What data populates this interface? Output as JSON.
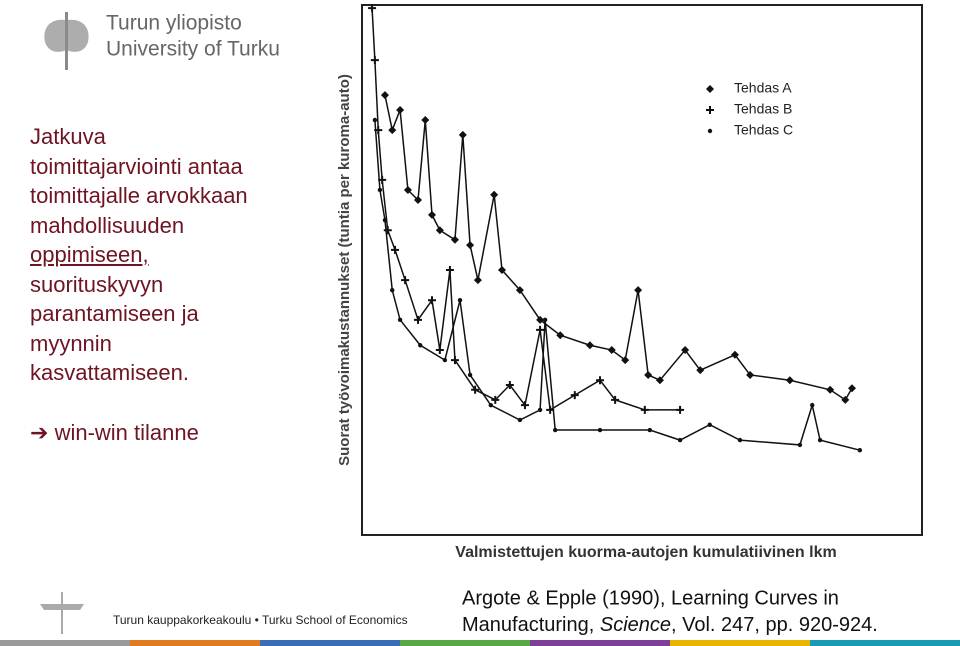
{
  "logo": {
    "line1": "Turun yliopisto",
    "line2": "University of Turku"
  },
  "body": {
    "lines": [
      "Jatkuva",
      "toimittajarviointi antaa",
      "toimittajalle arvokkaan",
      "mahdollisuuden",
      "oppimiseen,",
      "suorituskyvyn",
      "parantamiseen ja",
      "myynnin",
      "kasvattamiseen."
    ],
    "conclusion": "win-win tilanne"
  },
  "footer": "Turun kauppakorkeakoulu • Turku School of Economics",
  "citation": {
    "line1": "Argote & Epple (1990), Learning Curves in",
    "line2_start": "Manufacturing, ",
    "journal": "Science",
    "line2_end": ", Vol. 247, pp. 920-924."
  },
  "chart_data": {
    "type": "line",
    "xlabel": "Valmistettujen kuorma-autojen kumulatiivinen lkm",
    "ylabel": "Suorat työvoimakustannukset (tuntia per kuroma-auto)",
    "xlim": [
      0,
      100
    ],
    "ylim": [
      0,
      100
    ],
    "series": [
      {
        "name": "Tehdas A",
        "color": "#111111",
        "marker": "diamond",
        "x": [
          4.1,
          5.4,
          6.8,
          8.2,
          10.0,
          11.3,
          12.5,
          13.9,
          16.6,
          18.0,
          19.3,
          20.7,
          23.6,
          25.0,
          28.2,
          31.8,
          35.4,
          40.7,
          44.6,
          47.0,
          49.3,
          51.1,
          53.2,
          57.7,
          60.4,
          66.6,
          69.3,
          76.4,
          83.6,
          86.3,
          87.5
        ],
        "values": [
          83.0,
          76.4,
          80.2,
          65.1,
          63.2,
          78.3,
          60.4,
          57.5,
          55.7,
          75.5,
          54.7,
          48.1,
          64.2,
          50.0,
          46.2,
          40.6,
          37.7,
          35.8,
          34.9,
          33.0,
          46.2,
          30.2,
          29.2,
          34.9,
          31.1,
          34.0,
          30.2,
          29.2,
          27.4,
          25.5,
          27.7
        ]
      },
      {
        "name": "Tehdas B",
        "color": "#111111",
        "marker": "plus",
        "x": [
          1.8,
          2.3,
          2.9,
          3.6,
          4.6,
          5.9,
          7.7,
          10.0,
          12.5,
          13.9,
          15.7,
          16.6,
          20.2,
          23.8,
          26.4,
          29.1,
          31.8,
          33.6,
          38.0,
          42.5,
          45.2,
          50.5,
          56.8
        ],
        "values": [
          99.4,
          89.6,
          76.4,
          67.0,
          57.5,
          53.8,
          48.1,
          40.6,
          44.3,
          34.9,
          50.0,
          33.0,
          27.4,
          25.5,
          28.3,
          24.5,
          38.7,
          23.6,
          26.4,
          29.2,
          25.5,
          23.6,
          23.6
        ]
      },
      {
        "name": "Tehdas C",
        "color": "#111111",
        "marker": "circle",
        "x": [
          2.3,
          3.2,
          4.1,
          5.4,
          6.8,
          10.4,
          14.8,
          17.5,
          19.3,
          23.0,
          28.2,
          31.8,
          32.7,
          34.5,
          42.5,
          51.4,
          56.8,
          62.1,
          67.5,
          78.2,
          80.4,
          81.8,
          88.9
        ],
        "values": [
          78.3,
          65.1,
          59.4,
          46.2,
          40.6,
          35.8,
          33.0,
          44.3,
          30.2,
          24.5,
          21.7,
          23.6,
          40.6,
          19.8,
          19.8,
          19.8,
          17.9,
          20.8,
          17.9,
          17.0,
          24.5,
          17.9,
          16.0
        ]
      }
    ]
  }
}
